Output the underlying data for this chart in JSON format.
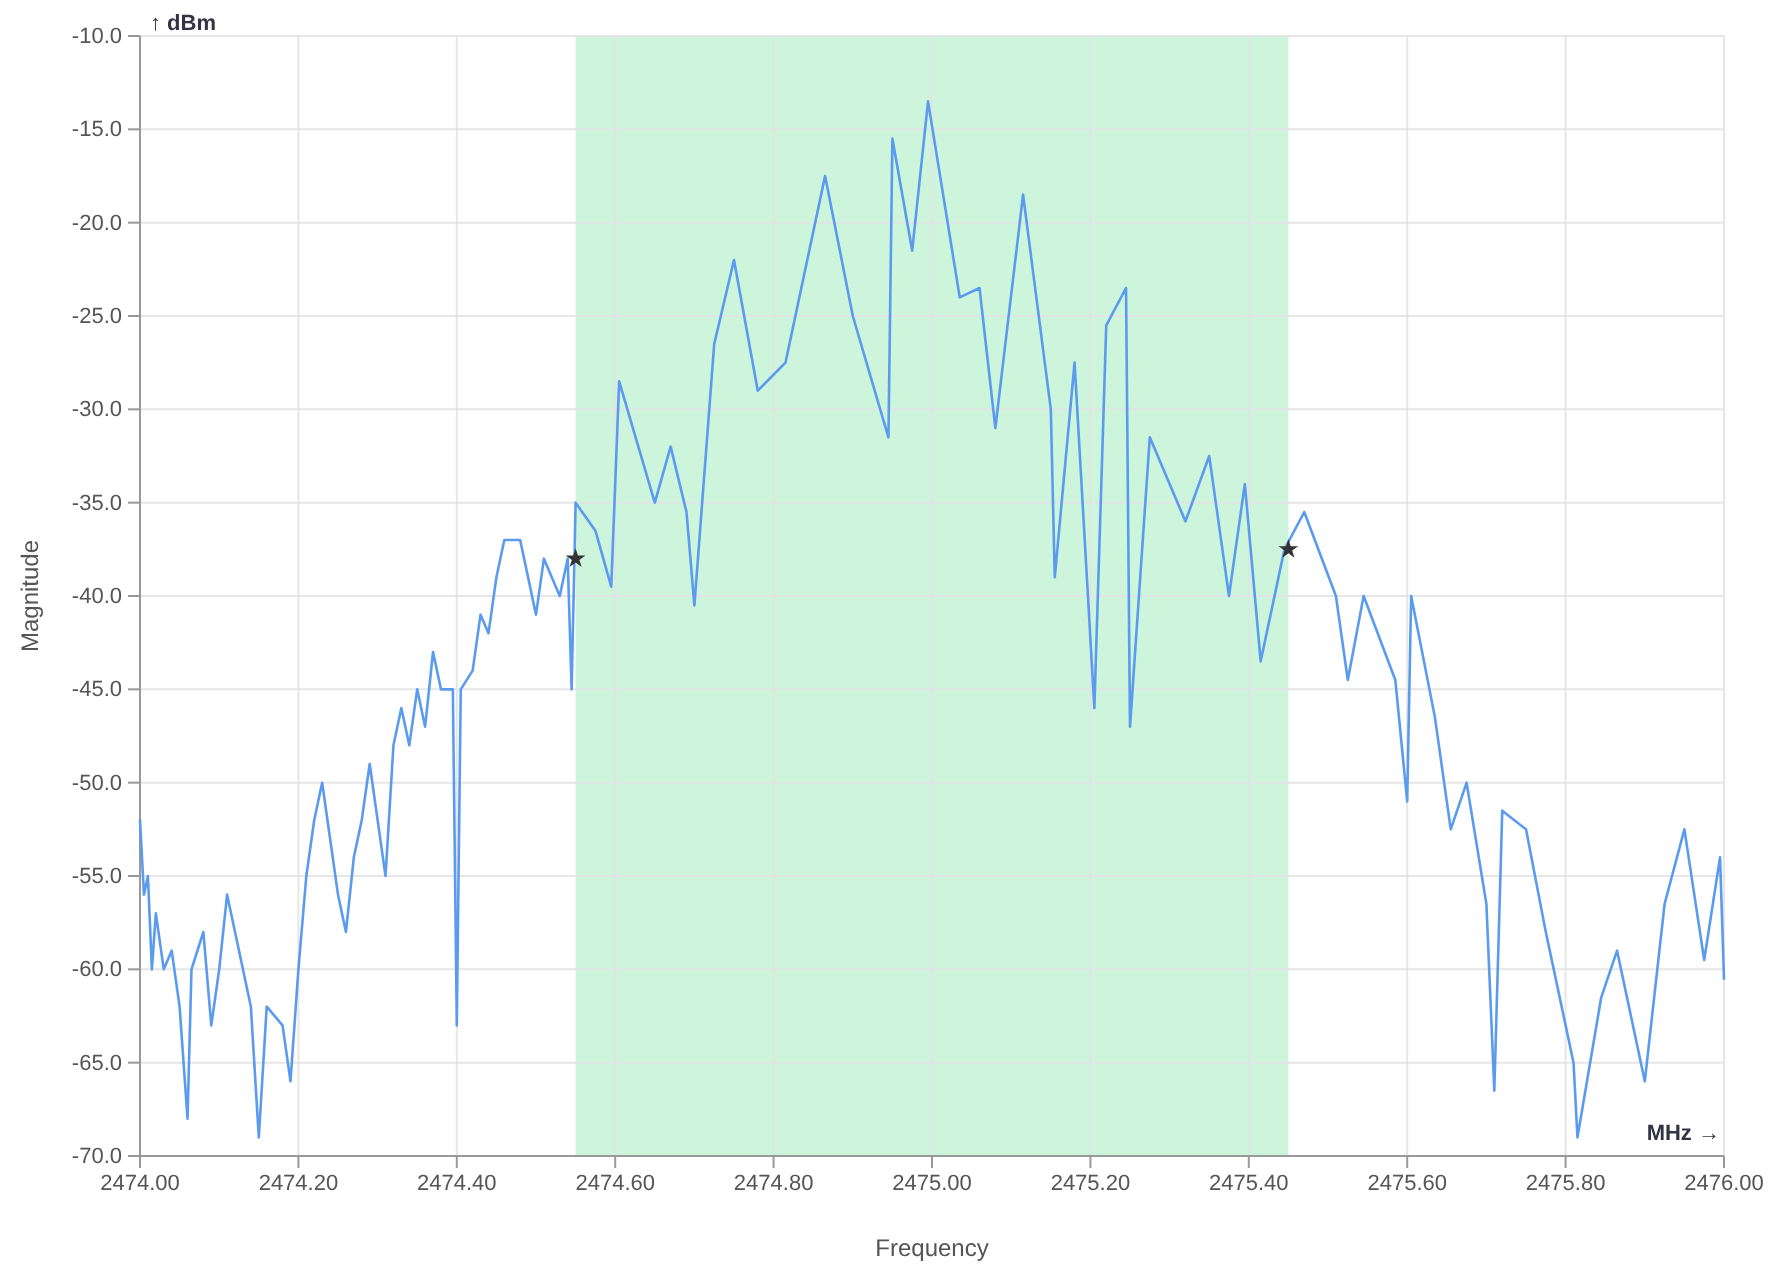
{
  "chart_data": {
    "type": "line",
    "xlabel": "Frequency",
    "ylabel": "Magnitude",
    "annotations": [
      "↑ dBm",
      "MHz →"
    ],
    "xlim": [
      2474,
      2476
    ],
    "xticks": [
      {
        "value": 2474,
        "label": "2474.00"
      },
      {
        "value": 2474.2,
        "label": "2474.20"
      },
      {
        "value": 2474.4,
        "label": "2474.40"
      },
      {
        "value": 2474.6,
        "label": "2474.60"
      },
      {
        "value": 2474.8,
        "label": "2474.80"
      },
      {
        "value": 2475,
        "label": "2475.00"
      },
      {
        "value": 2475.2,
        "label": "2475.20"
      },
      {
        "value": 2475.4,
        "label": "2475.40"
      },
      {
        "value": 2475.6,
        "label": "2475.60"
      },
      {
        "value": 2475.8,
        "label": "2475.80"
      },
      {
        "value": 2476,
        "label": "2476.00"
      }
    ],
    "ylim": [
      -70,
      -10
    ],
    "yticks": [
      {
        "value": -70,
        "label": "-70.0"
      },
      {
        "value": -65,
        "label": "-65.0"
      },
      {
        "value": -60,
        "label": "-60.0"
      },
      {
        "value": -55,
        "label": "-55.0"
      },
      {
        "value": -50,
        "label": "-50.0"
      },
      {
        "value": -45,
        "label": "-45.0"
      },
      {
        "value": -40,
        "label": "-40.0"
      },
      {
        "value": -35,
        "label": "-35.0"
      },
      {
        "value": -30,
        "label": "-30.0"
      },
      {
        "value": -25,
        "label": "-25.0"
      },
      {
        "value": -20,
        "label": "-20.0"
      },
      {
        "value": -15,
        "label": "-15.0"
      },
      {
        "value": -10,
        "label": "-10.0"
      }
    ],
    "grid": true,
    "bands": [
      {
        "axis": "x",
        "from": 2474.55,
        "to": 2475.45,
        "color": "#ccf5dc"
      }
    ],
    "series": [
      {
        "color": "#5b9bef",
        "x": [
          2474,
          2474.005,
          2474.01,
          2474.015,
          2474.02,
          2474.03,
          2474.04,
          2474.05,
          2474.06,
          2474.065,
          2474.08,
          2474.09,
          2474.1,
          2474.11,
          2474.12,
          2474.14,
          2474.15,
          2474.16,
          2474.18,
          2474.19,
          2474.2,
          2474.21,
          2474.22,
          2474.23,
          2474.24,
          2474.25,
          2474.26,
          2474.27,
          2474.28,
          2474.29,
          2474.3,
          2474.31,
          2474.32,
          2474.33,
          2474.34,
          2474.35,
          2474.36,
          2474.37,
          2474.38,
          2474.395,
          2474.4,
          2474.405,
          2474.42,
          2474.43,
          2474.44,
          2474.45,
          2474.46,
          2474.48,
          2474.49,
          2474.5,
          2474.51,
          2474.53,
          2474.54,
          2474.545,
          2474.55,
          2474.575,
          2474.595,
          2474.605,
          2474.65,
          2474.67,
          2474.69,
          2474.7,
          2474.725,
          2474.75,
          2474.78,
          2474.815,
          2474.865,
          2474.9,
          2474.945,
          2474.95,
          2474.975,
          2474.995,
          2475.035,
          2475.06,
          2475.08,
          2475.115,
          2475.15,
          2475.155,
          2475.18,
          2475.205,
          2475.22,
          2475.245,
          2475.25,
          2475.275,
          2475.32,
          2475.35,
          2475.375,
          2475.395,
          2475.415,
          2475.445,
          2475.47,
          2475.51,
          2475.525,
          2475.545,
          2475.585,
          2475.6,
          2475.605,
          2475.635,
          2475.655,
          2475.675,
          2475.7,
          2475.71,
          2475.72,
          2475.75,
          2475.775,
          2475.81,
          2475.815,
          2475.845,
          2475.865,
          2475.9,
          2475.925,
          2475.95,
          2475.975,
          2475.995,
          2476
        ],
        "values": [
          -52,
          -56,
          -55,
          -60,
          -57,
          -60,
          -59,
          -62,
          -68,
          -60,
          -58,
          -63,
          -60,
          -56,
          -58,
          -62,
          -69,
          -62,
          -63,
          -66,
          -60,
          -55,
          -52,
          -50,
          -53,
          -56,
          -58,
          -54,
          -52,
          -49,
          -52,
          -55,
          -48,
          -46,
          -48,
          -45,
          -47,
          -43,
          -45,
          -45,
          -63,
          -45,
          -44,
          -41,
          -42,
          -39,
          -37,
          -37,
          -39,
          -41,
          -38,
          -40,
          -38,
          -45,
          -35,
          -36.5,
          -39.5,
          -28.5,
          -35,
          -32,
          -35.5,
          -40.5,
          -26.5,
          -22,
          -29,
          -27.5,
          -17.5,
          -25,
          -31.5,
          -15.5,
          -21.5,
          -13.5,
          -24,
          -23.5,
          -31,
          -18.5,
          -30,
          -39,
          -27.5,
          -46,
          -25.5,
          -23.5,
          -47,
          -31.5,
          -36,
          -32.5,
          -40,
          -34,
          -43.5,
          -37.5,
          -35.5,
          -40,
          -44.5,
          -40,
          -44.5,
          -51,
          -40,
          -46.5,
          -52.5,
          -50,
          -56.5,
          -66.5,
          -51.5,
          -52.5,
          -58,
          -65,
          -69,
          -61.5,
          -59,
          -66,
          -56.5,
          -52.5,
          -59.5,
          -54,
          -60.5
        ]
      },
      {
        "type": "scatter",
        "color": "#333333",
        "marker": "star",
        "x": [
          2474.55,
          2475.45
        ],
        "values": [
          -38,
          -37.5
        ]
      }
    ]
  }
}
